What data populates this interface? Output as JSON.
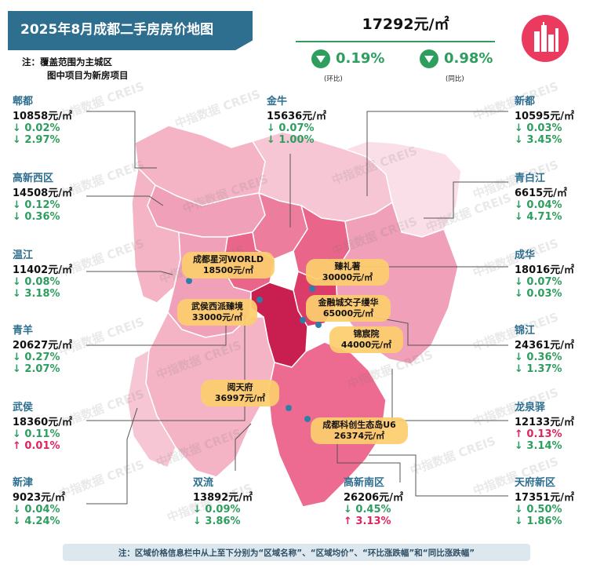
{
  "title": "2025年8月成都二手房房价地图",
  "notes": [
    "注：覆盖范围为主城区",
    "图中项目为新房项目"
  ],
  "city": {
    "price": "17292元/㎡",
    "mom": {
      "value": "0.19%",
      "label": "(环比)",
      "direction": "down"
    },
    "yoy": {
      "value": "0.98%",
      "label": "(同比)",
      "direction": "down"
    }
  },
  "watermark": "中指数据 CREIS",
  "districts": [
    {
      "name": "郫都",
      "price": "10858元/㎡",
      "mom": "↓ 0.02%",
      "yoy": "↓ 2.97%",
      "mom_dir": "down",
      "yoy_dir": "down"
    },
    {
      "name": "高新西区",
      "price": "14508元/㎡",
      "mom": "↓ 0.12%",
      "yoy": "↓ 0.36%",
      "mom_dir": "down",
      "yoy_dir": "down"
    },
    {
      "name": "温江",
      "price": "11402元/㎡",
      "mom": "↓ 0.08%",
      "yoy": "↓ 3.18%",
      "mom_dir": "down",
      "yoy_dir": "down"
    },
    {
      "name": "青羊",
      "price": "20627元/㎡",
      "mom": "↓ 0.27%",
      "yoy": "↓ 2.07%",
      "mom_dir": "down",
      "yoy_dir": "down"
    },
    {
      "name": "武侯",
      "price": "18360元/㎡",
      "mom": "↓ 0.11%",
      "yoy": "↑ 0.01%",
      "mom_dir": "down",
      "yoy_dir": "up"
    },
    {
      "name": "新津",
      "price": "9023元/㎡",
      "mom": "↓ 0.04%",
      "yoy": "↓ 4.24%",
      "mom_dir": "down",
      "yoy_dir": "down"
    },
    {
      "name": "金牛",
      "price": "15636元/㎡",
      "mom": "↓ 0.07%",
      "yoy": "↓ 1.00%",
      "mom_dir": "down",
      "yoy_dir": "down"
    },
    {
      "name": "双流",
      "price": "13892元/㎡",
      "mom": "↓ 0.09%",
      "yoy": "↓ 3.86%",
      "mom_dir": "down",
      "yoy_dir": "down"
    },
    {
      "name": "高新南区",
      "price": "26206元/㎡",
      "mom": "↓ 0.45%",
      "yoy": "↑ 3.13%",
      "mom_dir": "down",
      "yoy_dir": "up"
    },
    {
      "name": "新都",
      "price": "10595元/㎡",
      "mom": "↓ 0.03%",
      "yoy": "↓ 3.45%",
      "mom_dir": "down",
      "yoy_dir": "down"
    },
    {
      "name": "青白江",
      "price": "6615元/㎡",
      "mom": "↓ 0.04%",
      "yoy": "↓ 4.71%",
      "mom_dir": "down",
      "yoy_dir": "down"
    },
    {
      "name": "成华",
      "price": "18016元/㎡",
      "mom": "↓ 0.07%",
      "yoy": "↓ 0.03%",
      "mom_dir": "down",
      "yoy_dir": "down"
    },
    {
      "name": "锦江",
      "price": "24361元/㎡",
      "mom": "↓ 0.36%",
      "yoy": "↓ 1.37%",
      "mom_dir": "down",
      "yoy_dir": "down"
    },
    {
      "name": "龙泉驿",
      "price": "12133元/㎡",
      "mom": "↑ 0.13%",
      "yoy": "↓ 3.14%",
      "mom_dir": "up",
      "yoy_dir": "down"
    },
    {
      "name": "天府新区",
      "price": "17351元/㎡",
      "mom": "↓ 0.50%",
      "yoy": "↓ 1.86%",
      "mom_dir": "down",
      "yoy_dir": "down"
    }
  ],
  "projects": [
    {
      "name": "成都星河WORLD",
      "price": "18500元/㎡"
    },
    {
      "name": "臻礼著",
      "price": "30000元/㎡"
    },
    {
      "name": "武侯西派臻境",
      "price": "33000元/㎡"
    },
    {
      "name": "金融城交子缦华",
      "price": "65000元/㎡"
    },
    {
      "name": "锦宸院",
      "price": "44000元/㎡"
    },
    {
      "name": "阅天府",
      "price": "36997元/㎡"
    },
    {
      "name": "成都科创生态岛U6",
      "price": "26374元/㎡"
    }
  ],
  "footer": "注：区域价格信息栏中从上至下分别为“区域名称”、“区域均价”、“环比涨跌幅”和“同比涨跌幅”",
  "colors": {
    "title_bg": "#2e6e8e",
    "down": "#2e9e5e",
    "up": "#e0245e",
    "project_label": "#fccd6e"
  }
}
